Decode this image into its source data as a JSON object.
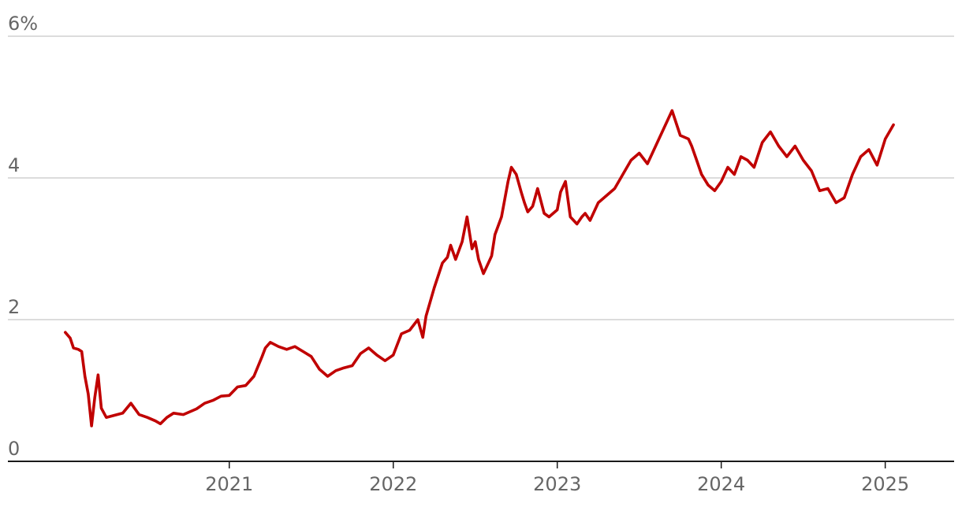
{
  "chart_data": {
    "type": "line",
    "title": "",
    "xlabel": "",
    "ylabel": "",
    "y_ticks": [
      {
        "value": 0,
        "label": "0"
      },
      {
        "value": 2,
        "label": "2"
      },
      {
        "value": 4,
        "label": "4"
      },
      {
        "value": 6,
        "label": "6%"
      }
    ],
    "x_ticks": [
      {
        "value": 2021,
        "label": "2021"
      },
      {
        "value": 2022,
        "label": "2022"
      },
      {
        "value": 2023,
        "label": "2023"
      },
      {
        "value": 2024,
        "label": "2024"
      },
      {
        "value": 2025,
        "label": "2025"
      }
    ],
    "xlim": [
      2019.65,
      2025.42
    ],
    "ylim": [
      0,
      6
    ],
    "grid": true,
    "legend": "none",
    "colors": {
      "series": "#c00000",
      "grid": "#b9b9b9",
      "axis": "#1a1a1a",
      "text": "#666666"
    },
    "series": [
      {
        "x": [
          2020.0,
          2020.03,
          2020.05,
          2020.08,
          2020.1,
          2020.12,
          2020.14,
          2020.16,
          2020.18,
          2020.2,
          2020.22,
          2020.25,
          2020.3,
          2020.35,
          2020.4,
          2020.45,
          2020.5,
          2020.55,
          2020.58,
          2020.62,
          2020.66,
          2020.72,
          2020.8,
          2020.85,
          2020.9,
          2020.95,
          2021.0,
          2021.05,
          2021.1,
          2021.15,
          2021.2,
          2021.22,
          2021.25,
          2021.3,
          2021.35,
          2021.4,
          2021.45,
          2021.5,
          2021.55,
          2021.6,
          2021.65,
          2021.7,
          2021.75,
          2021.8,
          2021.85,
          2021.9,
          2021.95,
          2022.0,
          2022.05,
          2022.1,
          2022.15,
          2022.18,
          2022.2,
          2022.25,
          2022.3,
          2022.33,
          2022.35,
          2022.38,
          2022.42,
          2022.45,
          2022.48,
          2022.5,
          2022.52,
          2022.55,
          2022.58,
          2022.6,
          2022.62,
          2022.66,
          2022.7,
          2022.72,
          2022.75,
          2022.78,
          2022.8,
          2022.82,
          2022.85,
          2022.88,
          2022.92,
          2022.95,
          2023.0,
          2023.02,
          2023.05,
          2023.08,
          2023.12,
          2023.15,
          2023.17,
          2023.2,
          2023.25,
          2023.3,
          2023.35,
          2023.4,
          2023.45,
          2023.5,
          2023.55,
          2023.6,
          2023.65,
          2023.7,
          2023.75,
          2023.8,
          2023.82,
          2023.85,
          2023.88,
          2023.92,
          2023.96,
          2024.0,
          2024.04,
          2024.08,
          2024.12,
          2024.16,
          2024.2,
          2024.25,
          2024.3,
          2024.35,
          2024.4,
          2024.45,
          2024.5,
          2024.55,
          2024.6,
          2024.65,
          2024.7,
          2024.75,
          2024.8,
          2024.85,
          2024.9,
          2024.95,
          2025.0,
          2025.05
        ],
        "values": [
          1.82,
          1.74,
          1.6,
          1.58,
          1.55,
          1.2,
          0.95,
          0.5,
          0.9,
          1.22,
          0.75,
          0.62,
          0.65,
          0.68,
          0.82,
          0.66,
          0.62,
          0.57,
          0.53,
          0.62,
          0.68,
          0.66,
          0.74,
          0.82,
          0.86,
          0.92,
          0.93,
          1.05,
          1.07,
          1.2,
          1.48,
          1.6,
          1.68,
          1.62,
          1.58,
          1.62,
          1.55,
          1.48,
          1.3,
          1.2,
          1.28,
          1.32,
          1.35,
          1.52,
          1.6,
          1.5,
          1.42,
          1.5,
          1.8,
          1.85,
          2.0,
          1.75,
          2.05,
          2.45,
          2.8,
          2.88,
          3.05,
          2.85,
          3.1,
          3.45,
          3.0,
          3.1,
          2.85,
          2.65,
          2.8,
          2.9,
          3.2,
          3.45,
          3.95,
          4.15,
          4.05,
          3.8,
          3.65,
          3.52,
          3.6,
          3.85,
          3.5,
          3.45,
          3.55,
          3.8,
          3.95,
          3.45,
          3.35,
          3.45,
          3.5,
          3.4,
          3.65,
          3.75,
          3.85,
          4.05,
          4.25,
          4.35,
          4.2,
          4.45,
          4.7,
          4.95,
          4.6,
          4.55,
          4.45,
          4.25,
          4.05,
          3.9,
          3.82,
          3.95,
          4.15,
          4.05,
          4.3,
          4.25,
          4.15,
          4.5,
          4.65,
          4.45,
          4.3,
          4.45,
          4.25,
          4.1,
          3.82,
          3.85,
          3.65,
          3.72,
          4.05,
          4.3,
          4.4,
          4.18,
          4.55,
          4.75
        ]
      }
    ]
  }
}
